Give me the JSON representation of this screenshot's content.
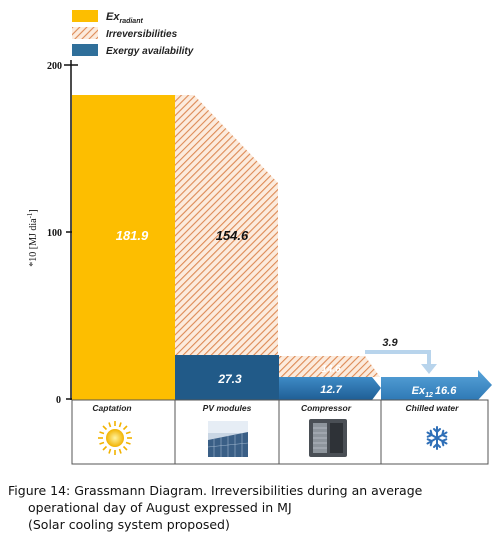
{
  "legend": {
    "items": [
      {
        "key": "radiant",
        "label_main": "Ex",
        "label_sub": "radiant",
        "color": "#FDBE00"
      },
      {
        "key": "irreversibilities",
        "label_main": "Irreversibilities",
        "label_sub": "",
        "color": "#E8A57A"
      },
      {
        "key": "exergy",
        "label_main": "Exergy availability",
        "label_sub": "",
        "color": "#2F6F9A"
      }
    ]
  },
  "axis": {
    "ylabel": "*10 [MJ dia",
    "ylabel_sup": "-1",
    "ylabel_end": "]",
    "ticks": [
      "200",
      "100",
      "0"
    ]
  },
  "chart_data": {
    "type": "bar",
    "title": "",
    "ylim": [
      0,
      200
    ],
    "yticks": [
      0,
      100,
      200
    ],
    "stages": [
      {
        "category": "Captation",
        "radiant": 181.9,
        "irreversibilities": 0,
        "exergy": 0
      },
      {
        "category": "PV modules",
        "radiant": 0,
        "irreversibilities": 154.6,
        "exergy": 27.3
      },
      {
        "category": "Compressor",
        "radiant": 0,
        "irreversibilities": 14.6,
        "exergy": 12.7
      },
      {
        "category": "Chilled water",
        "radiant": 0,
        "irreversibilities": 0,
        "exergy": 16.6
      }
    ],
    "labels": {
      "radiant": "181.9",
      "pv_irr": "154.6",
      "pv_exergy": "27.3",
      "comp_irr": "14.6",
      "comp_exergy": "12.7",
      "recovered": "3.9",
      "output_main": "Ex",
      "output_sub": "12",
      "output_value": "16.6"
    }
  },
  "caption": {
    "line1": "Figure 14: Grassmann Diagram. Irreversibilities during an average",
    "line2": "operational day of August expressed in MJ",
    "line3": "(Solar cooling system proposed)"
  },
  "icons": [
    "sun-icon",
    "solar-panel-icon",
    "compressor-icon",
    "snowflake-icon"
  ]
}
